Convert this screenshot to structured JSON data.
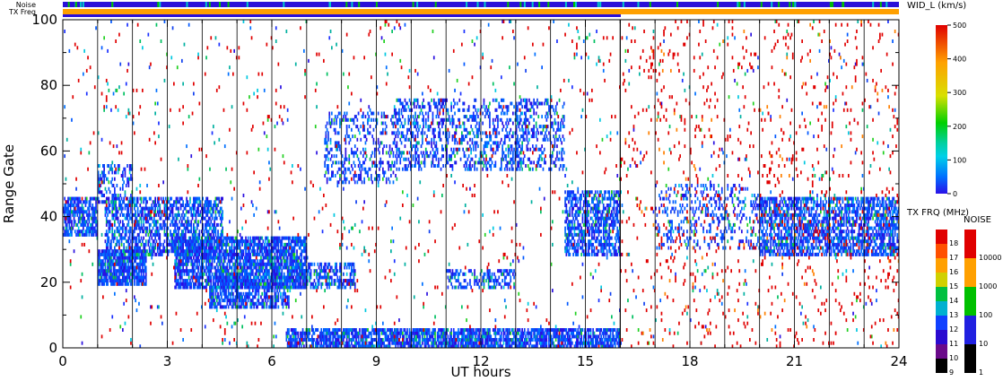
{
  "header": {
    "noise_label": "Noise",
    "txfreq_label": "TX Freq"
  },
  "chart_data": {
    "type": "heatmap",
    "title": "",
    "xlabel": "UT hours",
    "ylabel": "Range Gate",
    "xlim": [
      0,
      24
    ],
    "ylim": [
      0,
      100
    ],
    "x_ticks": [
      "0",
      "3",
      "6",
      "9",
      "12",
      "15",
      "18",
      "21",
      "24"
    ],
    "y_ticks": [
      "0",
      "20",
      "40",
      "60",
      "80",
      "100"
    ],
    "hour_dividers": [
      1,
      2,
      3,
      4,
      5,
      6,
      7,
      8,
      9,
      10,
      11,
      12,
      13,
      14,
      15,
      16,
      17,
      18,
      19,
      20,
      21,
      22,
      23
    ],
    "frequency_change_hour": 16,
    "colorbars": {
      "width": {
        "title": "WID_L (km/s)",
        "ticks": [
          "0",
          "100",
          "200",
          "300",
          "400",
          "500"
        ],
        "range": [
          0,
          500
        ]
      },
      "txfreq": {
        "title": "TX FRQ (MHz)",
        "ticks": [
          "9",
          "10",
          "11",
          "12",
          "13",
          "14",
          "15",
          "16",
          "17",
          "18"
        ],
        "range": [
          9,
          18
        ],
        "colors": [
          "#000000",
          "#6a0a8a",
          "#2a0ad0",
          "#1040ff",
          "#00b0d0",
          "#00c040",
          "#d0d000",
          "#ffa000",
          "#ff5000",
          "#e00000"
        ]
      },
      "noise": {
        "title": "NOISE",
        "ticks": [
          "1",
          "10",
          "100",
          "1000",
          "10000"
        ],
        "colors": [
          "#000000",
          "#2020e0",
          "#00c000",
          "#ffa000",
          "#e00000"
        ]
      }
    },
    "scatter_regions": [
      {
        "x": [
          0.0,
          1.0
        ],
        "y": [
          34,
          46
        ],
        "level": "blue",
        "density": 0.7
      },
      {
        "x": [
          1.0,
          2.4
        ],
        "y": [
          19,
          30
        ],
        "level": "blue",
        "density": 0.85
      },
      {
        "x": [
          1.2,
          4.6
        ],
        "y": [
          28,
          46
        ],
        "level": "blue",
        "density": 0.55
      },
      {
        "x": [
          1.0,
          2.0
        ],
        "y": [
          44,
          56
        ],
        "level": "blue",
        "density": 0.3
      },
      {
        "x": [
          3.2,
          7.0
        ],
        "y": [
          18,
          34
        ],
        "level": "blue",
        "density": 0.75
      },
      {
        "x": [
          4.2,
          6.5
        ],
        "y": [
          12,
          22
        ],
        "level": "blue",
        "density": 0.65
      },
      {
        "x": [
          6.5,
          8.4
        ],
        "y": [
          18,
          26
        ],
        "level": "blue",
        "density": 0.55
      },
      {
        "x": [
          7.5,
          9.6
        ],
        "y": [
          50,
          72
        ],
        "level": "blue",
        "density": 0.25
      },
      {
        "x": [
          9.5,
          13.4
        ],
        "y": [
          54,
          76
        ],
        "level": "blue",
        "density": 0.3
      },
      {
        "x": [
          11.0,
          13.0
        ],
        "y": [
          18,
          24
        ],
        "level": "blue",
        "density": 0.4
      },
      {
        "x": [
          13.0,
          14.4
        ],
        "y": [
          54,
          76
        ],
        "level": "blue",
        "density": 0.25
      },
      {
        "x": [
          14.4,
          16.0
        ],
        "y": [
          28,
          48
        ],
        "level": "blue",
        "density": 0.6
      },
      {
        "x": [
          6.4,
          16.0
        ],
        "y": [
          0,
          6
        ],
        "level": "blue",
        "density": 0.75
      },
      {
        "x": [
          17.0,
          20.0
        ],
        "y": [
          30,
          50
        ],
        "level": "blue",
        "density": 0.2
      },
      {
        "x": [
          20.0,
          24.0
        ],
        "y": [
          28,
          46
        ],
        "level": "blue",
        "density": 0.6
      },
      {
        "x": [
          0.0,
          24.0
        ],
        "y": [
          0,
          100
        ],
        "level": "sparse",
        "density": 0.02
      },
      {
        "x": [
          16.0,
          24.0
        ],
        "y": [
          0,
          100
        ],
        "level": "red",
        "density": 0.025
      }
    ]
  }
}
